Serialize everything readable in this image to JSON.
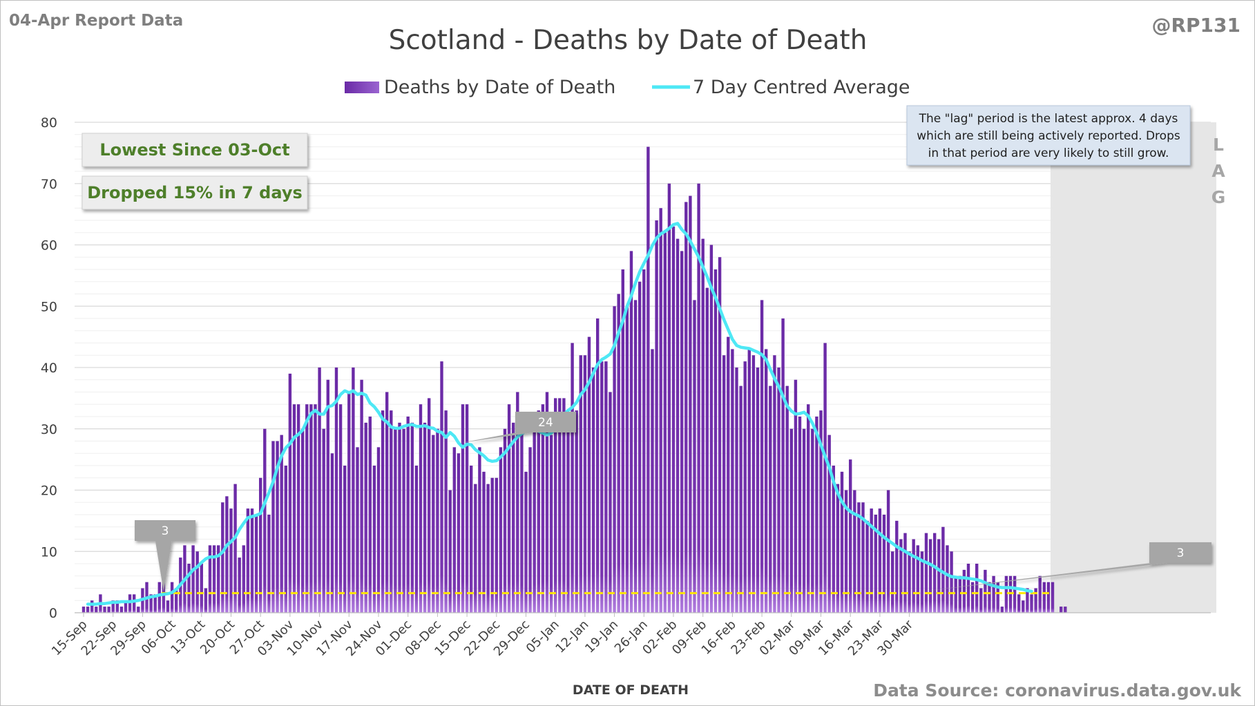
{
  "header": {
    "report_label": "04-Apr Report Data",
    "handle": "@RP131",
    "source": "Data Source: coronavirus.data.gov.uk"
  },
  "badges": {
    "lowest": "Lowest Since 03-Oct",
    "dropped": "Dropped 15% in 7 days"
  },
  "note": {
    "line1": "The \"lag\" period is the latest approx. 4 days",
    "line2": "which are still being actively reported.  Drops",
    "line3": "in that period are very likely to still grow."
  },
  "lag": {
    "letters": [
      "L",
      "A",
      "G"
    ]
  },
  "colors": {
    "bar": "#7030a0",
    "line": "#4ee8f5",
    "reference": "#ffe600",
    "callout": "#a6a6a6"
  },
  "chart_data": {
    "type": "bar",
    "title": "Scotland - Deaths by Date of Death",
    "xlabel": "DATE OF DEATH",
    "ylabel": "",
    "ylim": [
      0,
      80
    ],
    "yticks": [
      0,
      10,
      20,
      30,
      40,
      50,
      60,
      70,
      80
    ],
    "grid": true,
    "legend_position": "top-center",
    "start_date": "15-Sep",
    "x_tick_labels": [
      "15-Sep",
      "22-Sep",
      "29-Sep",
      "06-Oct",
      "13-Oct",
      "20-Oct",
      "27-Oct",
      "03-Nov",
      "10-Nov",
      "17-Nov",
      "24-Nov",
      "01-Dec",
      "08-Dec",
      "15-Dec",
      "22-Dec",
      "29-Dec",
      "05-Jan",
      "12-Jan",
      "19-Jan",
      "26-Jan",
      "02-Feb",
      "09-Feb",
      "16-Feb",
      "23-Feb",
      "02-Mar",
      "09-Mar",
      "16-Mar",
      "23-Mar",
      "30-Mar"
    ],
    "series": [
      {
        "name": "Deaths by Date of Death",
        "type": "bar",
        "values": [
          1,
          1,
          2,
          1,
          3,
          1,
          1,
          2,
          2,
          1,
          2,
          3,
          3,
          1,
          4,
          5,
          3,
          3,
          5,
          6,
          2,
          5,
          4,
          9,
          11,
          8,
          11,
          10,
          8,
          4,
          11,
          11,
          11,
          18,
          19,
          17,
          21,
          9,
          11,
          17,
          17,
          16,
          22,
          30,
          16,
          28,
          28,
          29,
          24,
          39,
          34,
          34,
          30,
          34,
          34,
          34,
          40,
          30,
          38,
          26,
          40,
          34,
          24,
          36,
          40,
          27,
          38,
          31,
          32,
          24,
          27,
          33,
          36,
          33,
          30,
          31,
          30,
          32,
          31,
          24,
          34,
          31,
          35,
          29,
          30,
          41,
          33,
          20,
          27,
          26,
          34,
          34,
          24,
          21,
          27,
          23,
          21,
          22,
          22,
          27,
          30,
          34,
          31,
          36,
          30,
          23,
          27,
          31,
          33,
          34,
          36,
          29,
          35,
          35,
          35,
          30,
          44,
          33,
          42,
          42,
          45,
          40,
          48,
          41,
          41,
          36,
          50,
          52,
          56,
          50,
          59,
          51,
          54,
          56,
          76,
          43,
          64,
          66,
          62,
          70,
          63,
          61,
          59,
          67,
          68,
          51,
          70,
          61,
          53,
          60,
          56,
          58,
          42,
          45,
          43,
          40,
          37,
          41,
          43,
          42,
          40,
          51,
          43,
          37,
          42,
          40,
          48,
          37,
          30,
          38,
          32,
          30,
          34,
          30,
          32,
          33,
          44,
          29,
          24,
          21,
          23,
          20,
          25,
          20,
          18,
          18,
          15,
          17,
          16,
          17,
          16,
          20,
          10,
          15,
          12,
          13,
          10,
          12,
          11,
          10,
          13,
          12,
          13,
          12,
          14,
          11,
          10,
          6,
          6,
          7,
          8,
          5,
          8,
          4,
          7,
          5,
          6,
          5,
          1,
          6,
          6,
          6,
          3,
          2,
          4,
          3,
          4,
          6,
          5,
          5,
          5,
          0,
          1,
          1
        ]
      },
      {
        "name": "7 Day Centred Average",
        "type": "line",
        "values": [
          1.4,
          1.4,
          1.4,
          1.5,
          1.5,
          1.6,
          1.7,
          1.7,
          1.8,
          1.8,
          1.8,
          1.9,
          2.0,
          2.2,
          2.4,
          2.6,
          2.7,
          2.9,
          3.0,
          3.1,
          3.3,
          3.8,
          4.6,
          5.4,
          6.2,
          7.0,
          7.5,
          8.2,
          8.8,
          9.1,
          9.1,
          9.3,
          9.9,
          11.0,
          11.6,
          12.3,
          13.6,
          14.6,
          15.5,
          15.7,
          15.9,
          16.2,
          17.9,
          19.6,
          21.4,
          23.7,
          25.6,
          26.9,
          27.6,
          28.6,
          29.1,
          29.8,
          31.3,
          32.5,
          33.0,
          32.4,
          32.4,
          33.6,
          33.8,
          34.5,
          35.6,
          36.2,
          35.9,
          36.2,
          35.6,
          35.8,
          35.5,
          34.2,
          33.6,
          32.7,
          31.6,
          31.1,
          30.3,
          30.1,
          30.1,
          30.4,
          30.6,
          30.7,
          30.4,
          30.4,
          30.5,
          30.2,
          30.1,
          29.6,
          29.4,
          28.6,
          29.4,
          28.8,
          27.7,
          27.0,
          27.5,
          27.4,
          26.6,
          26.1,
          25.6,
          24.9,
          24.7,
          24.8,
          25.4,
          26.1,
          27.0,
          27.9,
          28.7,
          29.2,
          29.6,
          29.8,
          29.9,
          29.6,
          29.3,
          29.0,
          29.3,
          30.0,
          31.1,
          32.3,
          33.0,
          33.5,
          34.3,
          35.6,
          36.4,
          37.6,
          39.1,
          40.5,
          41.3,
          41.7,
          42.2,
          43.6,
          45.7,
          47.6,
          50.0,
          51.7,
          53.8,
          55.6,
          57.0,
          58.3,
          59.9,
          61.1,
          61.8,
          62.2,
          62.7,
          63.3,
          63.5,
          62.5,
          61.8,
          60.6,
          59.3,
          58.0,
          56.4,
          54.8,
          53.0,
          51.4,
          49.6,
          47.8,
          46.2,
          44.6,
          43.6,
          43.3,
          43.2,
          43.1,
          42.8,
          42.5,
          42.1,
          41.3,
          39.7,
          38.2,
          36.9,
          35.3,
          33.7,
          32.9,
          32.4,
          32.5,
          32.7,
          32.1,
          30.9,
          29.3,
          27.4,
          25.5,
          23.7,
          21.4,
          19.5,
          18.1,
          17.1,
          16.5,
          16.1,
          15.8,
          15.3,
          14.7,
          14.1,
          13.5,
          12.9,
          12.3,
          11.8,
          11.3,
          10.8,
          10.4,
          10.0,
          9.6,
          9.2,
          8.9,
          8.5,
          8.2,
          7.9,
          7.5,
          7.0,
          6.6,
          6.2,
          5.9,
          5.8,
          5.7,
          5.7,
          5.6,
          5.5,
          5.4,
          5.2,
          4.9,
          4.6,
          4.4,
          4.2,
          4.1,
          4.1,
          4.1,
          4.0,
          3.9,
          3.8,
          3.6,
          3.5
        ]
      }
    ],
    "reference_line": {
      "value": 3.2,
      "style": "dashed"
    },
    "annotations": [
      {
        "label": "3",
        "series_index": 19
      },
      {
        "label": "24",
        "series_index": 85
      },
      {
        "label": "3",
        "series_index": 196
      }
    ],
    "lag_days": 4
  }
}
